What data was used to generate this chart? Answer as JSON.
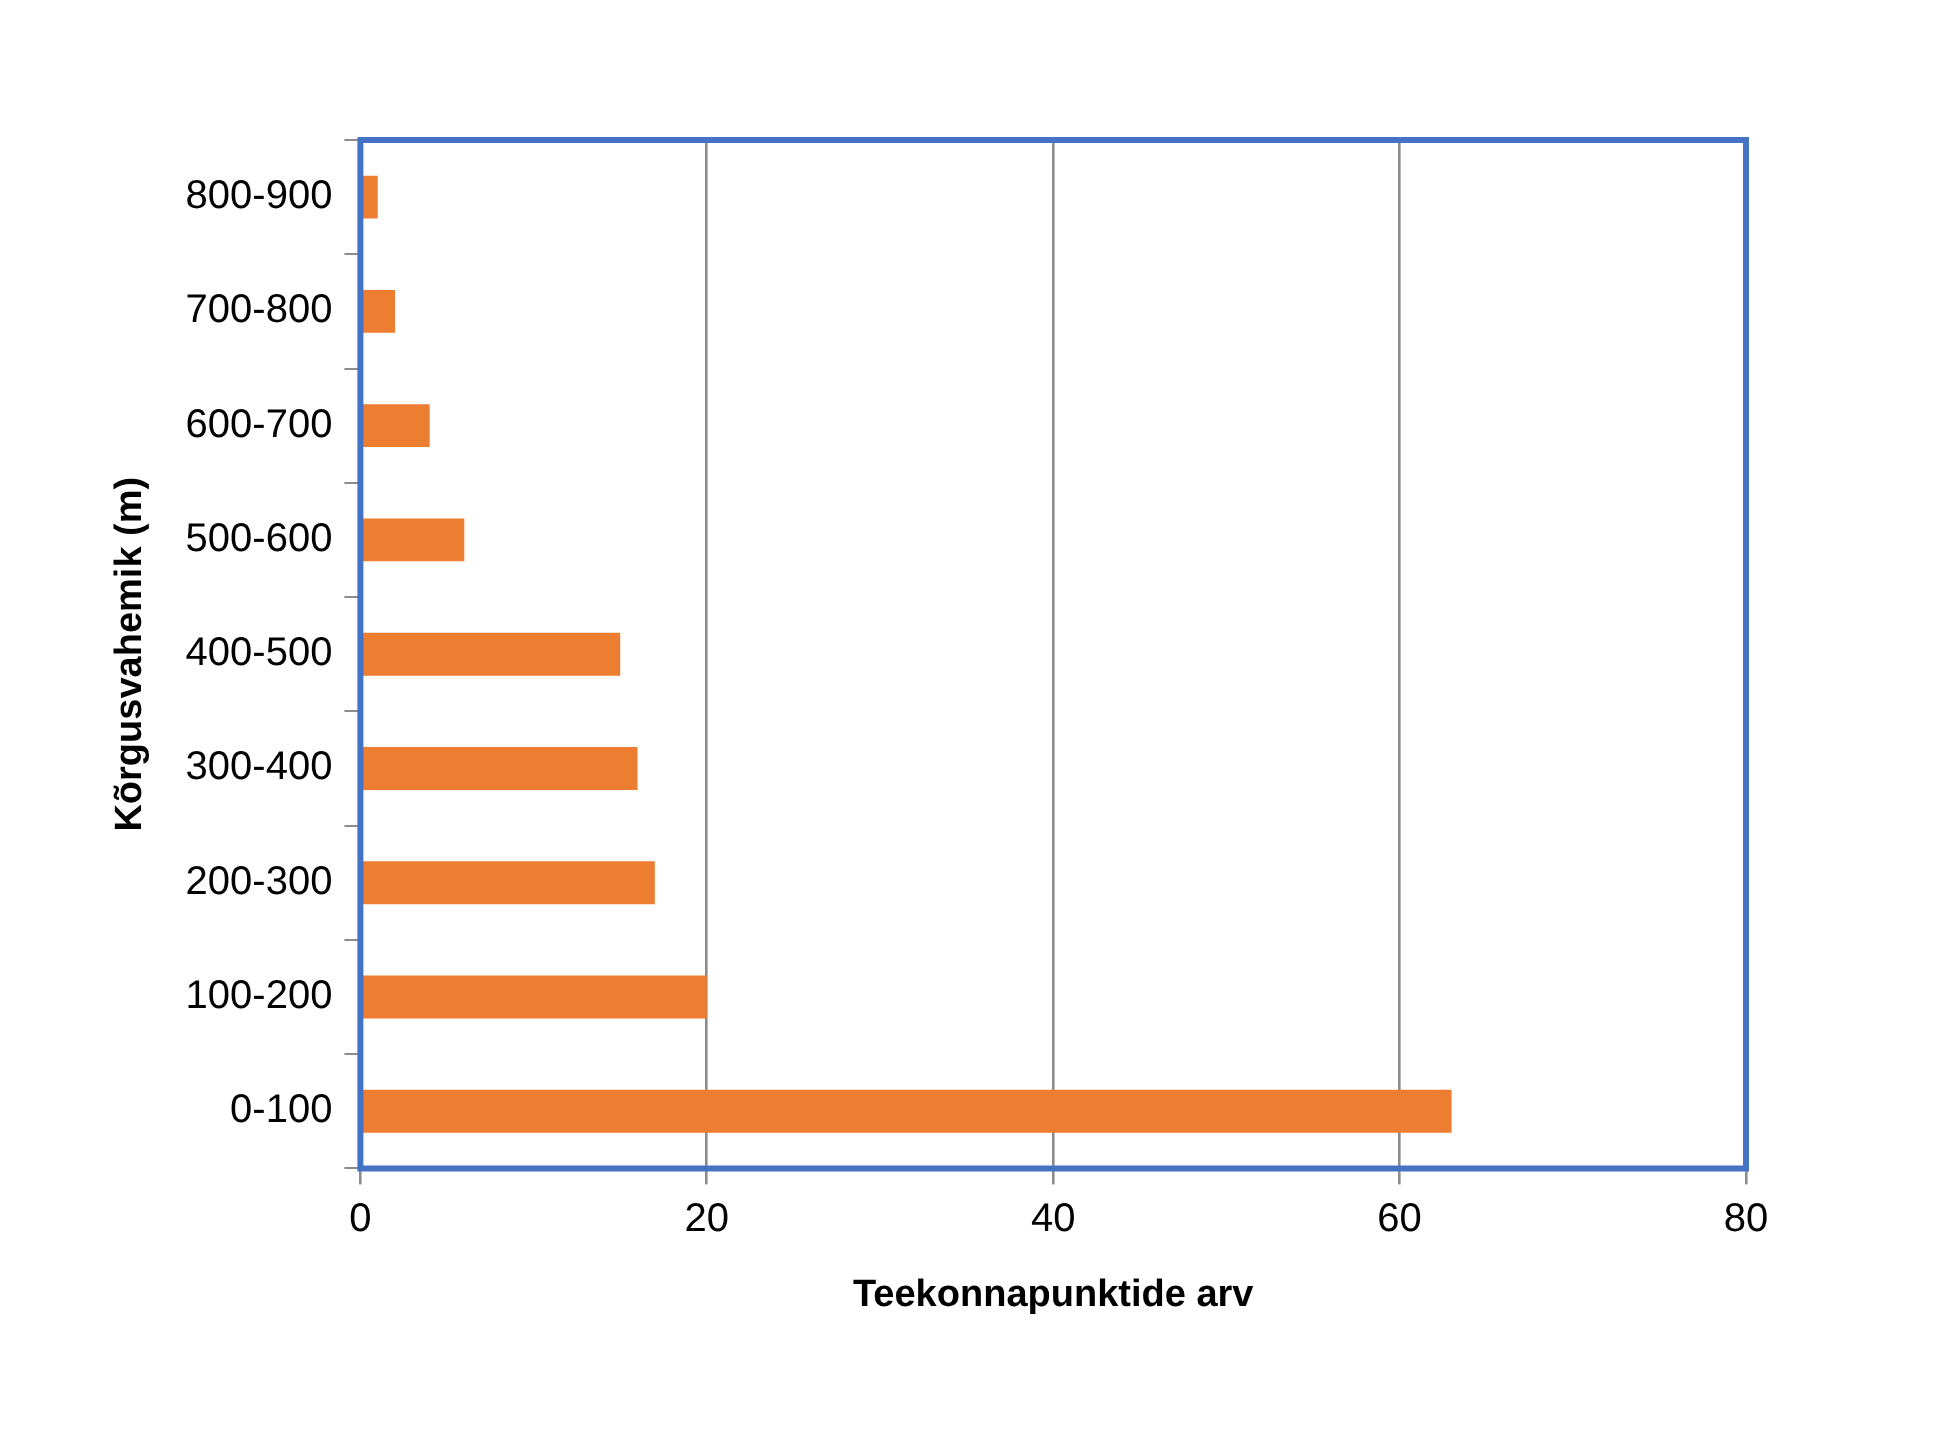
{
  "chart_data": {
    "type": "bar",
    "orientation": "horizontal",
    "categories": [
      "800-900",
      "700-800",
      "600-700",
      "500-600",
      "400-500",
      "300-400",
      "200-300",
      "100-200",
      "0-100"
    ],
    "values": [
      1,
      2,
      4,
      6,
      15,
      16,
      17,
      20,
      63
    ],
    "color": "#ed7d31",
    "xlim": [
      0,
      80
    ],
    "xticks": [
      0,
      20,
      40,
      60,
      80
    ],
    "xlabel": "Teekonnapunktide arv",
    "ylabel": "Kõrgusvahemik (m)",
    "grid": "x",
    "legend": false
  }
}
